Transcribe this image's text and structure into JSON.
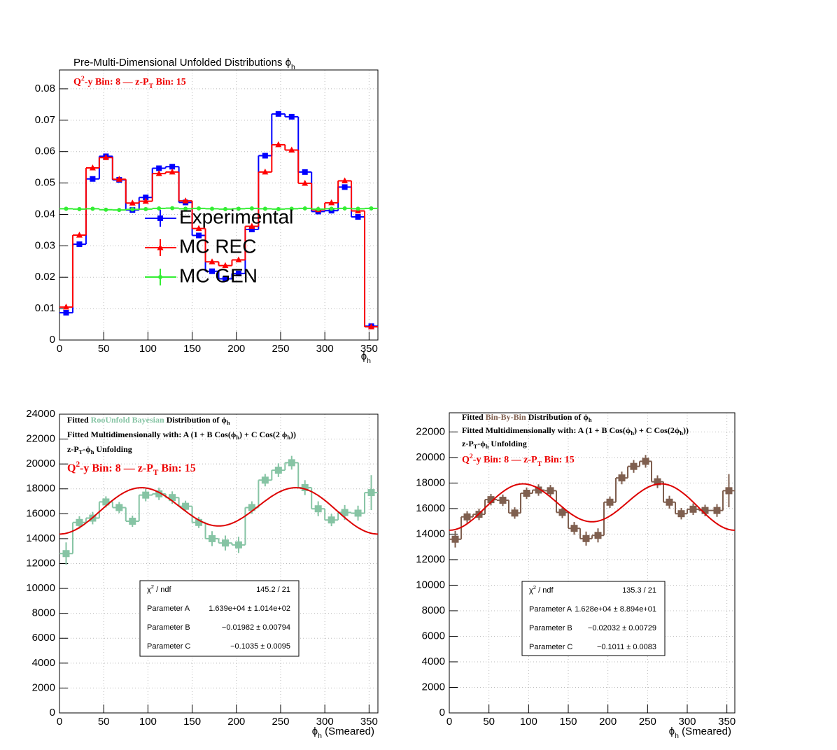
{
  "chart_data": [
    {
      "type": "histogram",
      "title": [
        "Pre-Multi-Dimensional Unfolded Distributions ϕ",
        {
          "sub": "h"
        }
      ],
      "subtitle": [
        "Q",
        {
          "sup": "2"
        },
        "-y Bin: 8  —  z-P",
        {
          "sub": "T"
        },
        " Bin: 15"
      ],
      "x_label": [
        "ϕ",
        {
          "sub": "h"
        }
      ],
      "bins": [
        0,
        15,
        30,
        45,
        60,
        75,
        90,
        105,
        120,
        135,
        150,
        165,
        180,
        195,
        210,
        225,
        240,
        255,
        270,
        285,
        300,
        315,
        330,
        345,
        360
      ],
      "series": [
        {
          "name": "Experimental",
          "color": "#0000ff",
          "marker": "square",
          "values": [
            0.0087,
            0.0305,
            0.0513,
            0.0585,
            0.051,
            0.0414,
            0.0454,
            0.0547,
            0.0552,
            0.0438,
            0.0333,
            0.0219,
            0.0195,
            0.0212,
            0.0352,
            0.0587,
            0.072,
            0.0711,
            0.0535,
            0.0409,
            0.0412,
            0.0487,
            0.0392,
            0.0044
          ]
        },
        {
          "name": "MC REC",
          "color": "#ff0000",
          "marker": "triangle",
          "values": [
            0.0105,
            0.0334,
            0.0548,
            0.0581,
            0.0512,
            0.0436,
            0.0442,
            0.053,
            0.0535,
            0.0443,
            0.0355,
            0.0249,
            0.0237,
            0.0255,
            0.0362,
            0.0535,
            0.0622,
            0.0605,
            0.0499,
            0.0415,
            0.0437,
            0.0507,
            0.0411,
            0.0042
          ]
        },
        {
          "name": "MC GEN",
          "color": "#33ee33",
          "marker": "circle",
          "values": [
            0.0418,
            0.0417,
            0.0418,
            0.0415,
            0.0414,
            0.0416,
            0.0417,
            0.0419,
            0.042,
            0.0418,
            0.0419,
            0.0418,
            0.0417,
            0.0418,
            0.0419,
            0.0418,
            0.0417,
            0.0418,
            0.0419,
            0.0417,
            0.0418,
            0.0419,
            0.0418,
            0.0419
          ]
        }
      ],
      "xlim": [
        0,
        360
      ],
      "xticks": [
        0,
        50,
        100,
        150,
        200,
        250,
        300,
        350
      ],
      "ylim": [
        0,
        0.086
      ],
      "yticks": [
        0,
        0.01,
        0.02,
        0.03,
        0.04,
        0.05,
        0.06,
        0.07,
        0.08
      ],
      "grid": true,
      "legend": "center"
    },
    {
      "type": "histogram",
      "annotations": [
        [
          "Fitted  ",
          {
            "text": "RooUnfold Bayesian",
            "color": "#86c4a4"
          },
          "  Distribution of  ϕ",
          {
            "sub": "h"
          }
        ],
        [
          "Fitted Multidimensionally with: A (1 + B Cos(ϕ",
          {
            "sub": "h"
          },
          ") + C Cos(2 ϕ",
          {
            "sub": "h"
          },
          "))"
        ],
        [
          "z-P",
          {
            "sub": "T"
          },
          "-ϕ",
          {
            "sub": "h"
          },
          " Unfolding"
        ]
      ],
      "subtitle": [
        "Q",
        {
          "sup": "2"
        },
        "-y Bin: 8  —  z-P",
        {
          "sub": "T"
        },
        " Bin: 15"
      ],
      "x_label": [
        "ϕ",
        {
          "sub": "h"
        },
        " (Smeared)"
      ],
      "bins": [
        0,
        15,
        30,
        45,
        60,
        75,
        90,
        105,
        120,
        135,
        150,
        165,
        180,
        195,
        210,
        225,
        240,
        255,
        270,
        285,
        300,
        315,
        330,
        345,
        360
      ],
      "color": "#86c4a4",
      "marker": "square",
      "values": [
        12800,
        15300,
        15650,
        16950,
        16500,
        15400,
        17500,
        17600,
        17300,
        16600,
        15300,
        14000,
        13650,
        13500,
        16500,
        18700,
        19500,
        20100,
        18100,
        16400,
        15500,
        16100,
        16050,
        17700
      ],
      "errors": [
        900,
        500,
        500,
        450,
        450,
        450,
        500,
        500,
        500,
        450,
        450,
        600,
        600,
        650,
        500,
        500,
        550,
        550,
        600,
        600,
        500,
        600,
        600,
        1400
      ],
      "fit_color": "#dd0000",
      "stats": [
        {
          "name": [
            "χ",
            {
              "sup": "2"
            },
            " / ndf"
          ],
          "label": "145.2 / 21"
        },
        {
          "name": [
            "Parameter A"
          ],
          "value": 16390,
          "label": "1.639e+04 ± 1.014e+02"
        },
        {
          "name": [
            "Parameter B"
          ],
          "value": -0.01982,
          "label": "−0.01982 ± 0.00794"
        },
        {
          "name": [
            "Parameter C"
          ],
          "value": -0.1035,
          "label": "−0.1035 ± 0.0095"
        }
      ],
      "xlim": [
        0,
        360
      ],
      "xticks": [
        0,
        50,
        100,
        150,
        200,
        250,
        300,
        350
      ],
      "ylim": [
        0,
        24000
      ],
      "yticks": [
        0,
        2000,
        4000,
        6000,
        8000,
        10000,
        12000,
        14000,
        16000,
        18000,
        20000,
        22000,
        24000
      ],
      "grid": true
    },
    {
      "type": "histogram",
      "annotations": [
        [
          "Fitted  ",
          {
            "text": "Bin-By-Bin",
            "color": "#7f5f4f"
          },
          " Distribution of  ϕ",
          {
            "sub": "h"
          }
        ],
        [
          "Fitted Multidimensionally with: A (1 + B Cos(ϕ",
          {
            "sub": "h"
          },
          ") + C Cos(2ϕ",
          {
            "sub": "h"
          },
          "))"
        ],
        [
          "z-P",
          {
            "sub": "T"
          },
          "-ϕ",
          {
            "sub": "h"
          },
          " Unfolding"
        ]
      ],
      "subtitle": [
        "Q",
        {
          "sup": "2"
        },
        "-y Bin: 8  —  z-P",
        {
          "sub": "T"
        },
        " Bin: 15"
      ],
      "x_label": [
        "ϕ",
        {
          "sub": "h"
        },
        " (Smeared)"
      ],
      "bins": [
        0,
        15,
        30,
        45,
        60,
        75,
        90,
        105,
        120,
        135,
        150,
        165,
        180,
        195,
        210,
        225,
        240,
        255,
        270,
        285,
        300,
        315,
        330,
        345,
        360
      ],
      "color": "#7f5f4f",
      "marker": "square",
      "values": [
        13600,
        15350,
        15550,
        16700,
        16650,
        15650,
        17200,
        17450,
        17400,
        15700,
        14450,
        13650,
        13900,
        16500,
        18400,
        19300,
        19700,
        18100,
        16500,
        15600,
        15950,
        15850,
        15850,
        17400
      ],
      "errors": [
        650,
        450,
        450,
        450,
        450,
        450,
        450,
        450,
        450,
        450,
        500,
        550,
        550,
        450,
        500,
        500,
        500,
        500,
        500,
        450,
        450,
        450,
        500,
        1300
      ],
      "fit_color": "#dd0000",
      "stats": [
        {
          "name": [
            "χ",
            {
              "sup": "2"
            },
            " / ndf"
          ],
          "label": "135.3 / 21"
        },
        {
          "name": [
            "Parameter A"
          ],
          "value": 16280,
          "label": "1.628e+04 ± 8.894e+01"
        },
        {
          "name": [
            "Parameter B"
          ],
          "value": -0.02032,
          "label": "−0.02032 ± 0.00729"
        },
        {
          "name": [
            "Parameter C"
          ],
          "value": -0.1011,
          "label": "−0.1011 ± 0.0083"
        }
      ],
      "xlim": [
        0,
        360
      ],
      "xticks": [
        0,
        50,
        100,
        150,
        200,
        250,
        300,
        350
      ],
      "ylim": [
        0,
        23500
      ],
      "yticks": [
        0,
        2000,
        4000,
        6000,
        8000,
        10000,
        12000,
        14000,
        16000,
        18000,
        20000,
        22000
      ],
      "grid": true
    }
  ]
}
